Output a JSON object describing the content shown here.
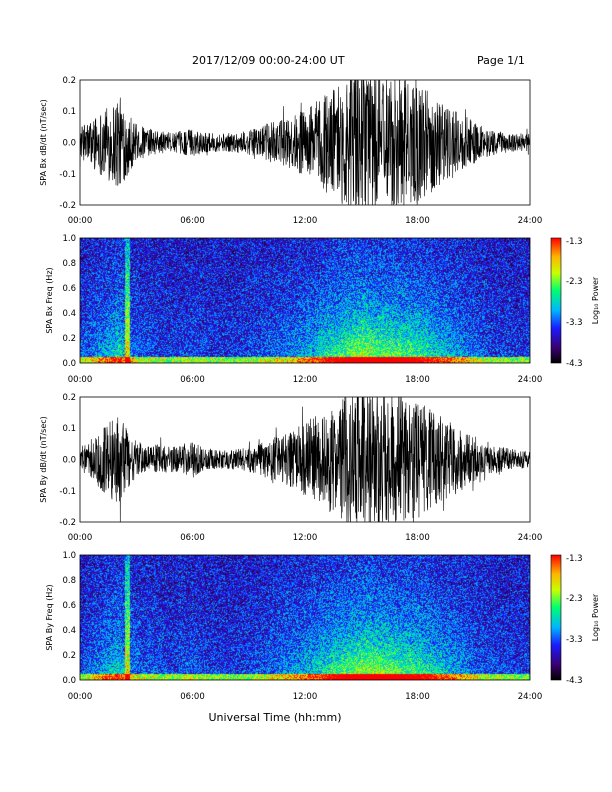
{
  "header": {
    "date_range": "2017/12/09   00:00-24:00 UT",
    "page": "Page 1/1"
  },
  "xaxis_title": "Universal Time (hh:mm)",
  "chart_data": [
    {
      "type": "line",
      "ylabel": "SPA Bx dB/dt (nT/sec)",
      "xlim": [
        0,
        24
      ],
      "ylim": [
        -0.2,
        0.2
      ],
      "x_ticks": [
        "00:00",
        "06:00",
        "12:00",
        "18:00",
        "24:00"
      ],
      "y_ticks": [
        "0.2",
        "0.1",
        "0.0",
        "-0.1",
        "-0.2"
      ],
      "amplitude_envelope": {
        "hours": [
          0,
          0.5,
          1,
          1.5,
          2,
          2.5,
          3,
          3.5,
          4,
          4.5,
          5,
          5.5,
          6,
          6.5,
          7,
          7.5,
          8,
          8.5,
          9,
          9.5,
          10,
          10.5,
          11,
          11.5,
          12,
          12.5,
          13,
          13.5,
          14,
          14.5,
          15,
          15.5,
          16,
          16.5,
          17,
          17.5,
          18,
          18.5,
          19,
          19.5,
          20,
          20.5,
          21,
          21.5,
          22,
          22.5,
          23,
          23.5,
          24
        ],
        "amplitude": [
          0.05,
          0.07,
          0.1,
          0.12,
          0.16,
          0.11,
          0.06,
          0.05,
          0.04,
          0.035,
          0.03,
          0.04,
          0.045,
          0.035,
          0.03,
          0.03,
          0.03,
          0.035,
          0.04,
          0.045,
          0.06,
          0.07,
          0.08,
          0.09,
          0.11,
          0.13,
          0.16,
          0.18,
          0.2,
          0.23,
          0.25,
          0.24,
          0.22,
          0.22,
          0.21,
          0.2,
          0.19,
          0.17,
          0.15,
          0.13,
          0.11,
          0.09,
          0.07,
          0.05,
          0.04,
          0.035,
          0.03,
          0.03,
          0.03
        ]
      }
    },
    {
      "type": "heatmap",
      "ylabel": "SPA Bx Freq (Hz)",
      "xlim": [
        0,
        24
      ],
      "ylim": [
        0,
        1.0
      ],
      "x_ticks": [
        "00:00",
        "06:00",
        "12:00",
        "18:00",
        "24:00"
      ],
      "y_ticks": [
        "1.0",
        "0.8",
        "0.6",
        "0.4",
        "0.2",
        "0.0"
      ],
      "colorbar": {
        "label": "Log₁₀ Power",
        "range": [
          -4.3,
          -1.3
        ],
        "ticks": [
          "-1.3",
          "-2.3",
          "-3.3",
          "-4.3"
        ]
      }
    },
    {
      "type": "line",
      "ylabel": "SPA By dB/dt (nT/sec)",
      "xlim": [
        0,
        24
      ],
      "ylim": [
        -0.2,
        0.2
      ],
      "x_ticks": [
        "00:00",
        "06:00",
        "12:00",
        "18:00",
        "24:00"
      ],
      "y_ticks": [
        "0.2",
        "0.1",
        "0.0",
        "-0.1",
        "-0.2"
      ],
      "amplitude_envelope": {
        "hours": [
          0,
          0.5,
          1,
          1.5,
          2,
          2.5,
          3,
          3.5,
          4,
          4.5,
          5,
          5.5,
          6,
          6.5,
          7,
          7.5,
          8,
          8.5,
          9,
          9.5,
          10,
          10.5,
          11,
          11.5,
          12,
          12.5,
          13,
          13.5,
          14,
          14.5,
          15,
          15.5,
          16,
          16.5,
          17,
          17.5,
          18,
          18.5,
          19,
          19.5,
          20,
          20.5,
          21,
          21.5,
          22,
          22.5,
          23,
          23.5,
          24
        ],
        "amplitude": [
          0.04,
          0.06,
          0.09,
          0.12,
          0.15,
          0.1,
          0.06,
          0.05,
          0.05,
          0.045,
          0.04,
          0.05,
          0.06,
          0.04,
          0.035,
          0.03,
          0.03,
          0.035,
          0.04,
          0.05,
          0.06,
          0.075,
          0.09,
          0.1,
          0.12,
          0.14,
          0.16,
          0.18,
          0.2,
          0.22,
          0.24,
          0.24,
          0.23,
          0.22,
          0.21,
          0.2,
          0.19,
          0.17,
          0.15,
          0.13,
          0.11,
          0.09,
          0.07,
          0.05,
          0.045,
          0.04,
          0.035,
          0.03,
          0.03
        ]
      }
    },
    {
      "type": "heatmap",
      "ylabel": "SPA By Freq (Hz)",
      "xlim": [
        0,
        24
      ],
      "ylim": [
        0,
        1.0
      ],
      "x_ticks": [
        "00:00",
        "06:00",
        "12:00",
        "18:00",
        "24:00"
      ],
      "y_ticks": [
        "1.0",
        "0.8",
        "0.6",
        "0.4",
        "0.2",
        "0.0"
      ],
      "colorbar": {
        "label": "Log₁₀ Power",
        "range": [
          -4.3,
          -1.3
        ],
        "ticks": [
          "-1.3",
          "-2.3",
          "-3.3",
          "-4.3"
        ]
      }
    }
  ]
}
